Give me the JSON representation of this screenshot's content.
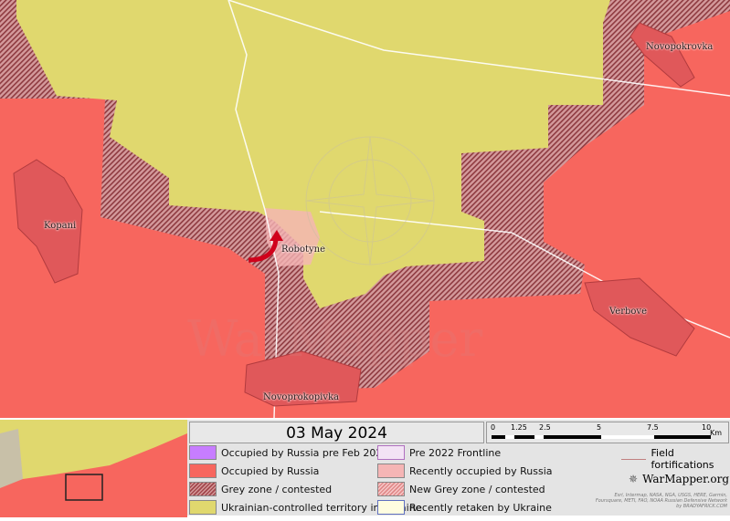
{
  "map": {
    "towns": [
      "Novopokrovka",
      "Kopani",
      "Robotyne",
      "Verbove",
      "Novoprokopivka"
    ],
    "watermark": "WarMapper",
    "colors": {
      "russia": "#f7665e",
      "ukraine": "#e0d86e",
      "grey_zone": "#a2474c",
      "recent_russia": "#f5b5b5",
      "advance_arrow": "#d0021b"
    }
  },
  "legend": {
    "date": "03 May 2024",
    "scale": {
      "ticks": [
        "0",
        "1.25",
        "2.5",
        "5",
        "7.5",
        "10"
      ],
      "unit": "Km"
    },
    "items": [
      {
        "label": "Occupied by Russia pre Feb 2022",
        "color": "#c77dff"
      },
      {
        "label": "Occupied by Russia",
        "color": "#f7665e"
      },
      {
        "label": "Grey zone / contested",
        "color": "hatched"
      },
      {
        "label": "Ukrainian-controlled territory in Ukraine",
        "color": "#e0d86e"
      },
      {
        "label": "Pre 2022 Frontline",
        "color": "#f3e3f5"
      },
      {
        "label": "Recently occupied by Russia",
        "color": "#f5b5b5"
      },
      {
        "label": "New Grey zone / contested",
        "color": "hatched-light"
      },
      {
        "label": "Recently retaken by Ukraine",
        "color": "#fffde0"
      }
    ],
    "field_fortifications": "Field fortifications",
    "logo": "WarMapper.org",
    "attribution": "Esri, Intermap, NASA, NGA, USGS, HERE, Garmin, Foursquare, METI, FAO, NOAA Russian Defensive Network by BRADYAFRICK.COM"
  }
}
